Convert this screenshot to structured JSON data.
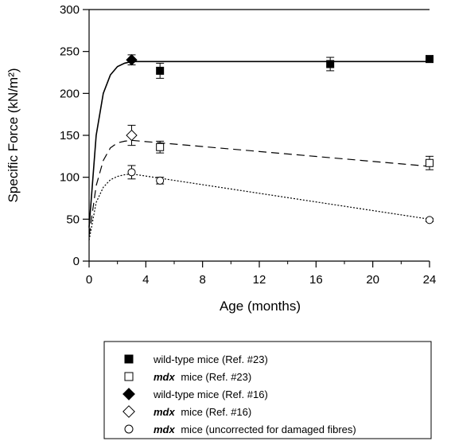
{
  "chart_data": {
    "type": "scatter",
    "title": "",
    "xlabel": "Age (months)",
    "ylabel": "Specific Force (kN/m²)",
    "xlim": [
      0,
      24
    ],
    "ylim": [
      0,
      300
    ],
    "xticks": [
      0,
      4,
      8,
      12,
      16,
      20,
      24
    ],
    "yticks": [
      0,
      50,
      100,
      150,
      200,
      250,
      300
    ],
    "grid": false,
    "legend_position": "bottom",
    "series": [
      {
        "name": "wild-type mice (Ref. #23)",
        "marker": "square-filled",
        "points": [
          {
            "x": 5,
            "y": 227,
            "err": 9
          },
          {
            "x": 17,
            "y": 235,
            "err": 8
          },
          {
            "x": 24,
            "y": 241,
            "err": 4
          }
        ]
      },
      {
        "name_italic": "mdx",
        "name": " mice (Ref. #23)",
        "marker": "square-open",
        "points": [
          {
            "x": 5,
            "y": 136,
            "err": 7
          },
          {
            "x": 24,
            "y": 117,
            "err": 8
          }
        ]
      },
      {
        "name": "wild-type mice (Ref. #16)",
        "marker": "diamond-filled",
        "points": [
          {
            "x": 3,
            "y": 240,
            "err": 6
          }
        ]
      },
      {
        "name_italic": "mdx",
        "name": " mice (Ref. #16)",
        "marker": "diamond-open",
        "points": [
          {
            "x": 3,
            "y": 150,
            "err": 12
          }
        ]
      },
      {
        "name_italic": "mdx",
        "name": " mice (uncorrected for damaged fibres)",
        "marker": "circle-open",
        "points": [
          {
            "x": 3,
            "y": 106,
            "err": 8
          },
          {
            "x": 5,
            "y": 96,
            "err": 4
          },
          {
            "x": 24,
            "y": 49,
            "err": 2
          }
        ]
      }
    ],
    "fit_curves": [
      {
        "style": "solid",
        "points": [
          [
            0,
            40
          ],
          [
            0.5,
            150
          ],
          [
            1,
            200
          ],
          [
            1.5,
            222
          ],
          [
            2,
            232
          ],
          [
            2.5,
            236
          ],
          [
            3,
            238
          ],
          [
            24,
            238
          ]
        ]
      },
      {
        "style": "dashed",
        "points": [
          [
            0,
            30
          ],
          [
            0.5,
            90
          ],
          [
            1,
            120
          ],
          [
            1.5,
            135
          ],
          [
            2,
            141
          ],
          [
            2.5,
            143
          ],
          [
            3,
            144
          ],
          [
            24,
            113
          ]
        ]
      },
      {
        "style": "dotted",
        "points": [
          [
            0,
            25
          ],
          [
            0.5,
            70
          ],
          [
            1,
            88
          ],
          [
            1.5,
            97
          ],
          [
            2,
            101
          ],
          [
            2.5,
            103
          ],
          [
            3,
            104
          ],
          [
            24,
            50
          ]
        ]
      }
    ]
  }
}
